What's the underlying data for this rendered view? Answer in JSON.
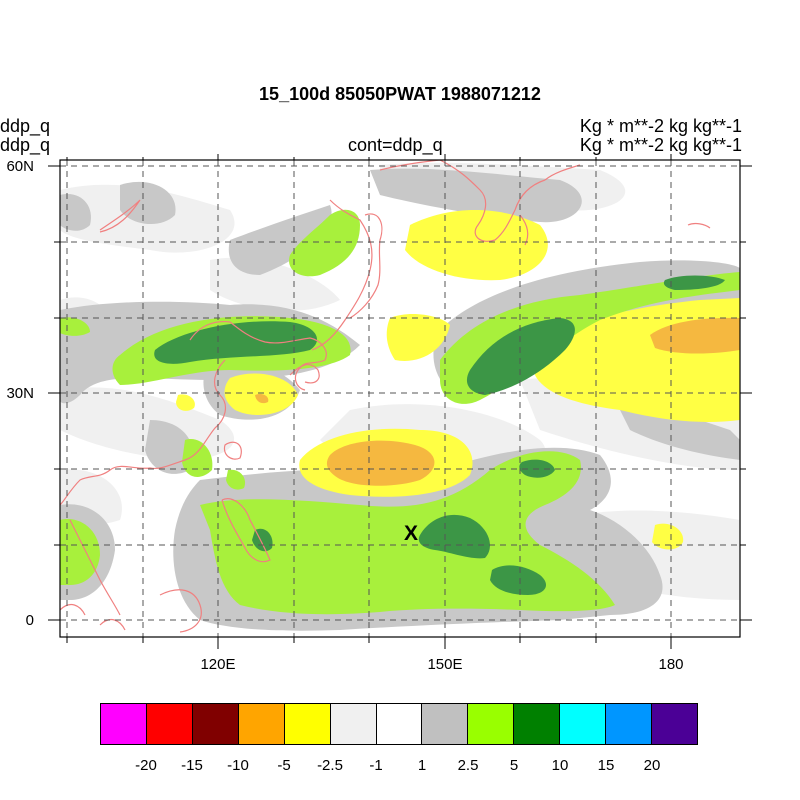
{
  "title": "15_100d 85050PWAT  1988071212",
  "left_labels": [
    "ddp_q",
    "ddp_q"
  ],
  "center_label": "cont=ddp_q",
  "right_labels": [
    "Kg  * m**-2 kg kg**-1",
    "Kg  * m**-2 kg kg**-1"
  ],
  "lat_labels": [
    "60N",
    "30N",
    "0"
  ],
  "lon_labels": [
    "120E",
    "150E",
    "180"
  ],
  "marker": "X",
  "colorbar": {
    "labels": [
      "-20",
      "-15",
      "-10",
      "-5",
      "-2.5",
      "-1",
      "1",
      "2.5",
      "5",
      "10",
      "15",
      "20"
    ],
    "colors": [
      "#ff00ff",
      "#ff0000",
      "#800000",
      "#ffa500",
      "#ffff00",
      "#f0f0f0",
      "#ffffff",
      "#c0c0c0",
      "#99ff00",
      "#008000",
      "#00ffff",
      "#0096ff",
      "#4b0096"
    ]
  },
  "palette": {
    "light_gray": "#f0f0f0",
    "gray": "#c8c8c8",
    "lime": "#a8f03c",
    "green": "#3c9646",
    "yellow": "#ffff44",
    "orange": "#f5b840",
    "coast": "#f08080"
  }
}
